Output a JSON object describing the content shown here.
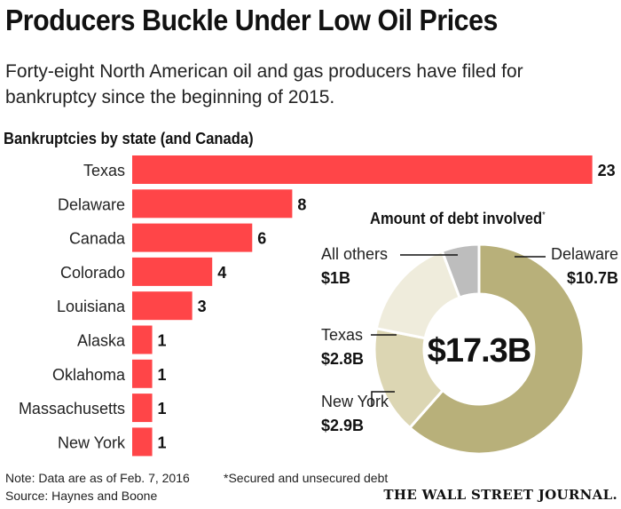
{
  "title": "Producers Buckle Under Low Oil Prices",
  "subtitle": "Forty-eight North American oil and gas producers have filed for bankruptcy since the beginning of 2015.",
  "note": "Note: Data are as of Feb. 7, 2016",
  "footnote": "*Secured and unsecured debt",
  "source": "Source: Haynes and Boone",
  "publisher": "THE WALL STREET JOURNAL.",
  "chart_data": [
    {
      "type": "bar",
      "orientation": "horizontal",
      "title": "Bankruptcies by state (and Canada)",
      "categories": [
        "Texas",
        "Delaware",
        "Canada",
        "Colorado",
        "Louisiana",
        "Alaska",
        "Oklahoma",
        "Massachusetts",
        "New York"
      ],
      "values": [
        23,
        8,
        6,
        4,
        3,
        1,
        1,
        1,
        1
      ],
      "color": "#ff4548"
    },
    {
      "type": "pie",
      "title": "Amount of debt involved",
      "title_mark": "*",
      "center_label": "$17.3B",
      "slices": [
        {
          "label": "Delaware",
          "value": 10.7,
          "value_label": "$10.7B",
          "color": "#b8b07a"
        },
        {
          "label": "New York",
          "value": 2.9,
          "value_label": "$2.9B",
          "color": "#dcd6b3"
        },
        {
          "label": "Texas",
          "value": 2.8,
          "value_label": "$2.8B",
          "color": "#efecdc"
        },
        {
          "label": "All others",
          "value": 1,
          "value_label": "$1B",
          "color": "#bdbdbd"
        }
      ]
    }
  ]
}
